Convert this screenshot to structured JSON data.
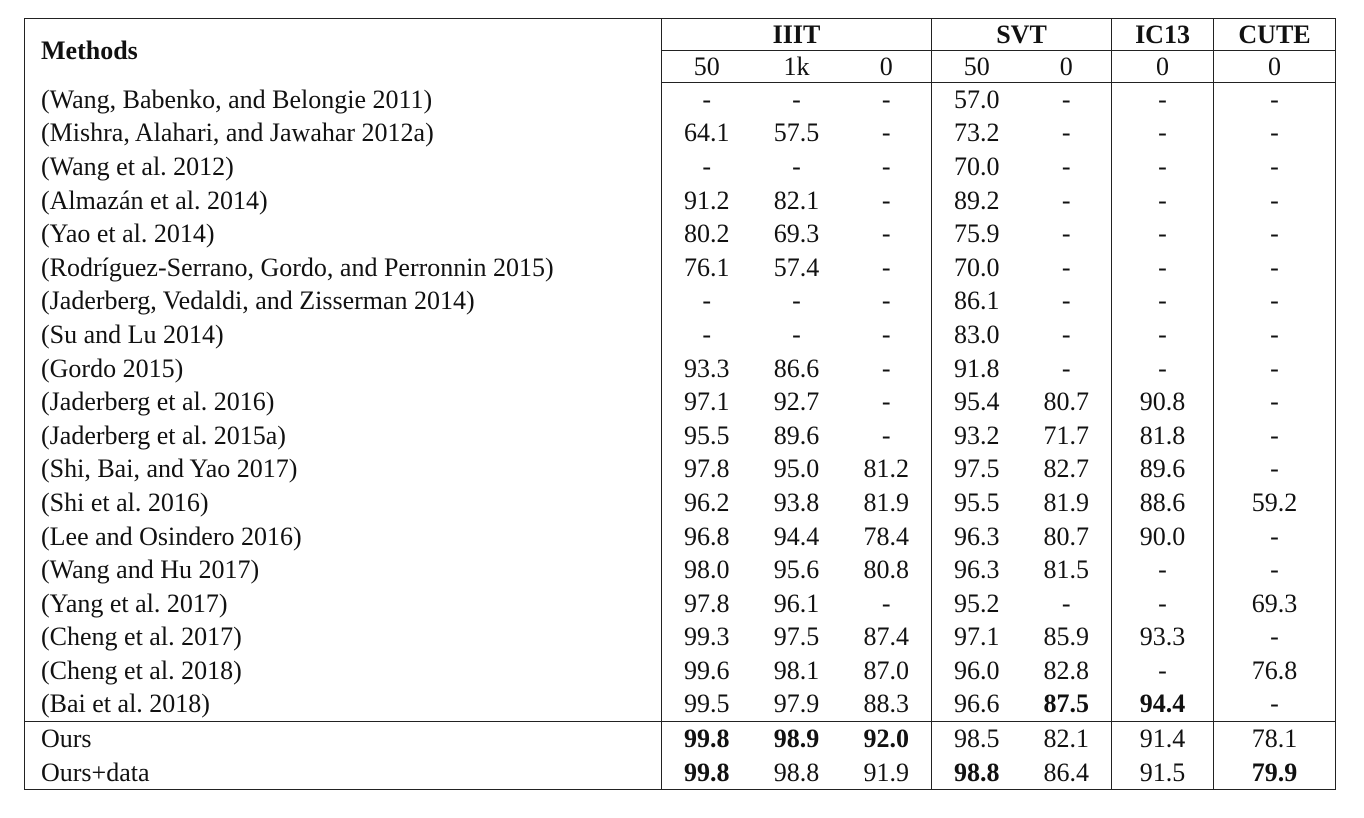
{
  "header": {
    "methods_label": "Methods",
    "groups": [
      "IIIT",
      "SVT",
      "IC13",
      "CUTE"
    ],
    "subcolumns": [
      "50",
      "1k",
      "0",
      "50",
      "0",
      "0",
      "0"
    ]
  },
  "rows": [
    {
      "method": "(Wang, Babenko, and Belongie 2011)",
      "cells": [
        "-",
        "-",
        "-",
        "57.0",
        "-",
        "-",
        "-"
      ]
    },
    {
      "method": "(Mishra, Alahari, and Jawahar 2012a)",
      "cells": [
        "64.1",
        "57.5",
        "-",
        "73.2",
        "-",
        "-",
        "-"
      ]
    },
    {
      "method": "(Wang et al. 2012)",
      "cells": [
        "-",
        "-",
        "-",
        "70.0",
        "-",
        "-",
        "-"
      ]
    },
    {
      "method": "(Almazán et al. 2014)",
      "cells": [
        "91.2",
        "82.1",
        "-",
        "89.2",
        "-",
        "-",
        "-"
      ]
    },
    {
      "method": "(Yao et al. 2014)",
      "cells": [
        "80.2",
        "69.3",
        "-",
        "75.9",
        "-",
        "-",
        "-"
      ]
    },
    {
      "method": "(Rodríguez-Serrano, Gordo, and Perronnin 2015)",
      "cells": [
        "76.1",
        "57.4",
        "-",
        "70.0",
        "-",
        "-",
        "-"
      ]
    },
    {
      "method": "(Jaderberg, Vedaldi, and Zisserman 2014)",
      "cells": [
        "-",
        "-",
        "-",
        "86.1",
        "-",
        "-",
        "-"
      ]
    },
    {
      "method": "(Su and Lu 2014)",
      "cells": [
        "-",
        "-",
        "-",
        "83.0",
        "-",
        "-",
        "-"
      ]
    },
    {
      "method": "(Gordo 2015)",
      "cells": [
        "93.3",
        "86.6",
        "-",
        "91.8",
        "-",
        "-",
        "-"
      ]
    },
    {
      "method": "(Jaderberg et al. 2016)",
      "cells": [
        "97.1",
        "92.7",
        "-",
        "95.4",
        "80.7",
        "90.8",
        "-"
      ]
    },
    {
      "method": "(Jaderberg et al. 2015a)",
      "cells": [
        "95.5",
        "89.6",
        "-",
        "93.2",
        "71.7",
        "81.8",
        "-"
      ]
    },
    {
      "method": "(Shi, Bai, and Yao 2017)",
      "cells": [
        "97.8",
        "95.0",
        "81.2",
        "97.5",
        "82.7",
        "89.6",
        "-"
      ]
    },
    {
      "method": "(Shi et al. 2016)",
      "cells": [
        "96.2",
        "93.8",
        "81.9",
        "95.5",
        "81.9",
        "88.6",
        "59.2"
      ]
    },
    {
      "method": "(Lee and Osindero 2016)",
      "cells": [
        "96.8",
        "94.4",
        "78.4",
        "96.3",
        "80.7",
        "90.0",
        "-"
      ]
    },
    {
      "method": "(Wang and Hu 2017)",
      "cells": [
        "98.0",
        "95.6",
        "80.8",
        "96.3",
        "81.5",
        "-",
        "-"
      ]
    },
    {
      "method": "(Yang et al. 2017)",
      "cells": [
        "97.8",
        "96.1",
        "-",
        "95.2",
        "-",
        "-",
        "69.3"
      ]
    },
    {
      "method": "(Cheng et al. 2017)",
      "cells": [
        "99.3",
        "97.5",
        "87.4",
        "97.1",
        "85.9",
        "93.3",
        "-"
      ]
    },
    {
      "method": "(Cheng et al. 2018)",
      "cells": [
        "99.6",
        "98.1",
        "87.0",
        "96.0",
        "82.8",
        "-",
        "76.8"
      ]
    },
    {
      "method": "(Bai et al. 2018)",
      "cells": [
        "99.5",
        "97.9",
        "88.3",
        "96.6",
        "87.5",
        "94.4",
        "-"
      ],
      "bold": [
        4,
        5
      ]
    },
    {
      "method": "Ours",
      "cells": [
        "99.8",
        "98.9",
        "92.0",
        "98.5",
        "82.1",
        "91.4",
        "78.1"
      ],
      "bold": [
        0,
        1,
        2
      ],
      "separator_above": true
    },
    {
      "method": "Ours+data",
      "cells": [
        "99.8",
        "98.8",
        "91.9",
        "98.8",
        "86.4",
        "91.5",
        "79.9"
      ],
      "bold": [
        0,
        3,
        6
      ]
    }
  ]
}
